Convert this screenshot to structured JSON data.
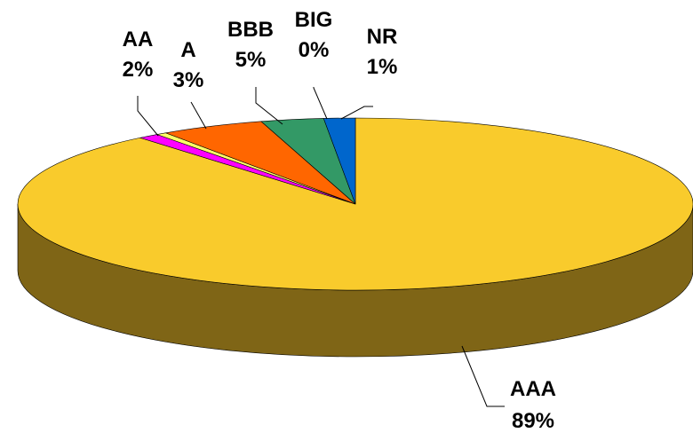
{
  "chart_data": {
    "type": "pie",
    "title": "",
    "style": "3d",
    "slices": [
      {
        "label": "AAA",
        "value": 89,
        "pct_label": "89%",
        "color": "#F9CB2C",
        "side_color": "#7F6516"
      },
      {
        "label": "NR",
        "value": 1,
        "pct_label": "1%",
        "color": "#FF00FF",
        "side_color": "#800080"
      },
      {
        "label": "BIG",
        "value": 0.5,
        "pct_label": "0%",
        "color": "#FFFF66",
        "side_color": "#808033"
      },
      {
        "label": "BBB",
        "value": 5,
        "pct_label": "5%",
        "color": "#FF6600",
        "side_color": "#803300"
      },
      {
        "label": "A",
        "value": 3,
        "pct_label": "3%",
        "color": "#339966",
        "side_color": "#1A4D33"
      },
      {
        "label": "AA",
        "value": 1.5,
        "pct_label": "2%",
        "color": "#0066CC",
        "side_color": "#003366"
      }
    ],
    "legend": "none"
  }
}
